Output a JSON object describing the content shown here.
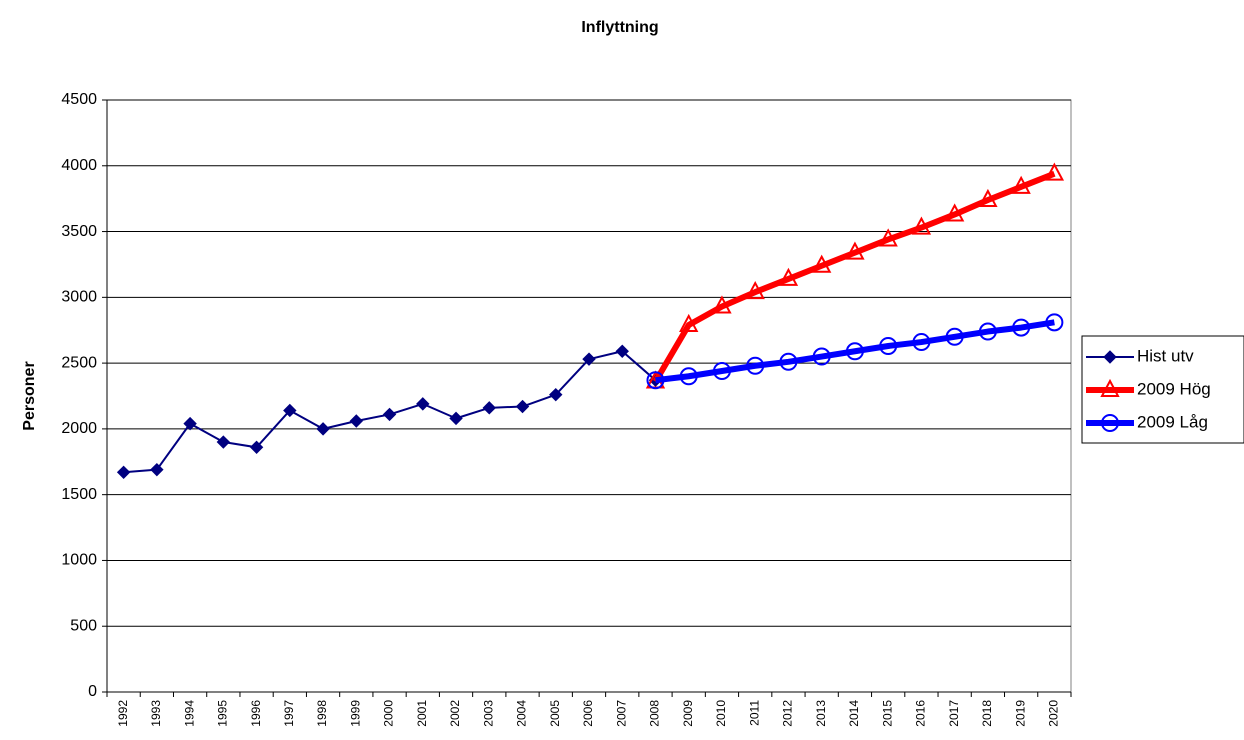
{
  "chart_data": {
    "type": "line",
    "title": "Inflyttning",
    "y_label": "Personer",
    "categories": [
      "1992",
      "1993",
      "1994",
      "1995",
      "1996",
      "1997",
      "1998",
      "1999",
      "2000",
      "2001",
      "2002",
      "2003",
      "2004",
      "2005",
      "2006",
      "2007",
      "2008",
      "2009",
      "2010",
      "2011",
      "2012",
      "2013",
      "2014",
      "2015",
      "2016",
      "2017",
      "2018",
      "2019",
      "2020"
    ],
    "series": [
      {
        "name": "Hist utv",
        "color": "#000080",
        "marker": "diamond",
        "values": [
          1670,
          1690,
          2040,
          1900,
          1860,
          2140,
          2000,
          2060,
          2110,
          2190,
          2080,
          2160,
          2170,
          2260,
          2530,
          2590,
          2370,
          null,
          null,
          null,
          null,
          null,
          null,
          null,
          null,
          null,
          null,
          null,
          null
        ]
      },
      {
        "name": "2009 Hög",
        "color": "#ff0000",
        "marker": "triangle",
        "values": [
          null,
          null,
          null,
          null,
          null,
          null,
          null,
          null,
          null,
          null,
          null,
          null,
          null,
          null,
          null,
          null,
          2360,
          2790,
          2930,
          3040,
          3140,
          3240,
          3340,
          3440,
          3530,
          3630,
          3740,
          3840,
          3940
        ]
      },
      {
        "name": "2009 Låg",
        "color": "#0000ff",
        "marker": "circle",
        "values": [
          null,
          null,
          null,
          null,
          null,
          null,
          null,
          null,
          null,
          null,
          null,
          null,
          null,
          null,
          null,
          null,
          2370,
          2400,
          2440,
          2480,
          2510,
          2550,
          2590,
          2630,
          2660,
          2700,
          2740,
          2770,
          2810
        ]
      }
    ],
    "ylim": [
      0,
      4500
    ],
    "yticks": [
      0,
      500,
      1000,
      1500,
      2000,
      2500,
      3000,
      3500,
      4000,
      4500
    ],
    "grid": true,
    "legend": "right"
  }
}
